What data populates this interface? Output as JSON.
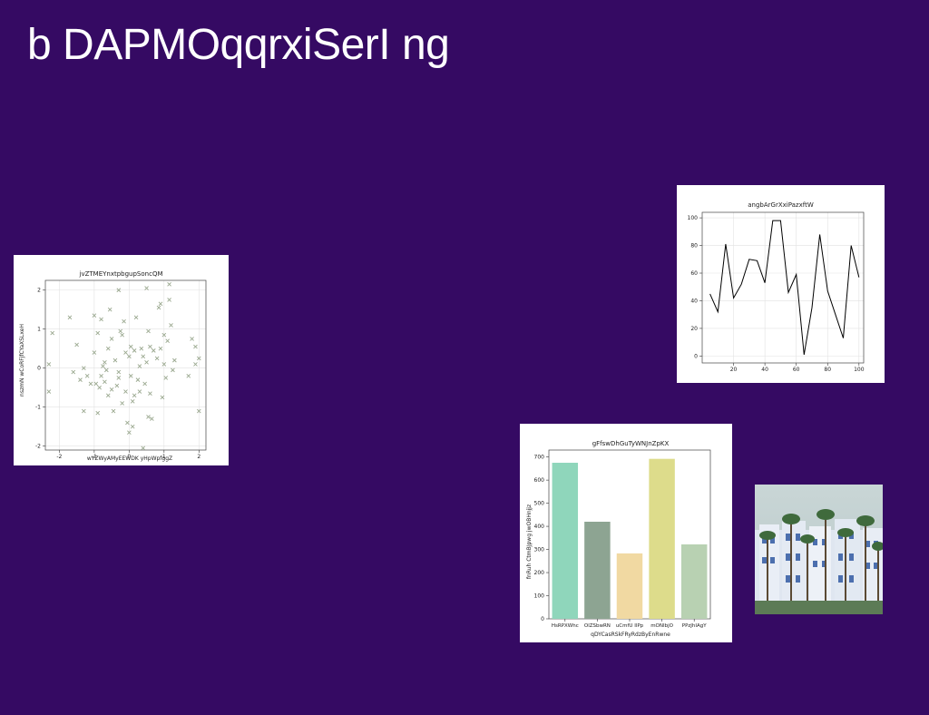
{
  "slide": {
    "title": "b DAPMOqqrxiSerI ng"
  },
  "charts": {
    "scatter": {
      "title": "jvZTMEYnxtpbgupSoncQM",
      "xlabel": "wYZWyAMyEEWDK yHpWpfggZ",
      "ylabel": "nszmN wCoRFjfCYaXSLxeH"
    },
    "line": {
      "title": "angbArGrXxiPazxftW"
    },
    "bar": {
      "title": "gFfswDhGuTyWNJnZpKX",
      "xlabel": "qDYCasRSkFRyRdzByEnRwne",
      "ylabel": "fnRuh CtmBJpwg jwOBHnjjz"
    }
  },
  "chart_data": [
    {
      "type": "scatter",
      "title": "jvZTMEYnxtpbgupSoncQM",
      "xlabel": "wYZWyAMyEEWDK yHpWpfggZ",
      "ylabel": "nszmN wCoRFjfCYaXSLxeH",
      "xlim": [
        -2.4,
        2.2
      ],
      "ylim": [
        -2.1,
        2.25
      ],
      "xticks": [
        -2,
        -1,
        0,
        1,
        2
      ],
      "yticks": [
        -2,
        -1,
        0,
        1,
        2
      ],
      "grid": true,
      "marker": "x",
      "color": "#9aa88f",
      "points": [
        [
          -2.3,
          0.1
        ],
        [
          -2.2,
          0.9
        ],
        [
          -2.3,
          -0.6
        ],
        [
          -1.7,
          1.3
        ],
        [
          -1.6,
          -0.1
        ],
        [
          -1.5,
          0.6
        ],
        [
          -1.4,
          -0.3
        ],
        [
          -1.3,
          -1.1
        ],
        [
          -1.3,
          0.0
        ],
        [
          -1.2,
          -0.2
        ],
        [
          -1.0,
          1.35
        ],
        [
          -1.0,
          0.4
        ],
        [
          -0.95,
          -0.4
        ],
        [
          -0.9,
          -1.15
        ],
        [
          -0.9,
          0.9
        ],
        [
          -0.85,
          -0.5
        ],
        [
          -0.8,
          -0.2
        ],
        [
          -0.8,
          1.25
        ],
        [
          -0.75,
          0.05
        ],
        [
          -0.7,
          -0.35
        ],
        [
          -0.65,
          -0.05
        ],
        [
          -0.6,
          0.5
        ],
        [
          -0.6,
          -0.7
        ],
        [
          -0.55,
          1.5
        ],
        [
          -0.5,
          0.75
        ],
        [
          -0.5,
          -0.55
        ],
        [
          -0.45,
          -1.1
        ],
        [
          -0.4,
          0.2
        ],
        [
          -0.35,
          -0.45
        ],
        [
          -0.3,
          2.0
        ],
        [
          -0.3,
          -0.1
        ],
        [
          -0.25,
          0.95
        ],
        [
          -0.2,
          0.85
        ],
        [
          -0.2,
          -0.9
        ],
        [
          -0.15,
          1.2
        ],
        [
          -0.1,
          0.4
        ],
        [
          -0.1,
          -0.6
        ],
        [
          -0.05,
          -1.4
        ],
        [
          0.0,
          0.3
        ],
        [
          0.0,
          -1.65
        ],
        [
          0.05,
          0.55
        ],
        [
          0.05,
          -0.2
        ],
        [
          0.1,
          -1.5
        ],
        [
          0.1,
          -0.85
        ],
        [
          0.15,
          0.45
        ],
        [
          0.2,
          1.3
        ],
        [
          0.25,
          -0.3
        ],
        [
          0.3,
          0.05
        ],
        [
          0.3,
          -0.6
        ],
        [
          0.35,
          0.5
        ],
        [
          0.4,
          -2.05
        ],
        [
          0.4,
          0.3
        ],
        [
          0.45,
          -0.4
        ],
        [
          0.5,
          2.05
        ],
        [
          0.5,
          0.15
        ],
        [
          0.55,
          -1.25
        ],
        [
          0.55,
          0.95
        ],
        [
          0.6,
          -0.65
        ],
        [
          0.65,
          -1.3
        ],
        [
          0.7,
          0.45
        ],
        [
          0.8,
          0.25
        ],
        [
          0.9,
          1.65
        ],
        [
          0.9,
          0.5
        ],
        [
          0.95,
          -0.75
        ],
        [
          1.0,
          0.85
        ],
        [
          1.0,
          0.1
        ],
        [
          1.05,
          -0.25
        ],
        [
          1.1,
          0.7
        ],
        [
          1.15,
          1.75
        ],
        [
          1.15,
          2.15
        ],
        [
          1.2,
          1.1
        ],
        [
          1.25,
          -0.05
        ],
        [
          1.3,
          0.2
        ],
        [
          1.7,
          -0.2
        ],
        [
          1.8,
          0.75
        ],
        [
          1.9,
          0.55
        ],
        [
          1.9,
          0.1
        ],
        [
          2.0,
          0.25
        ],
        [
          2.0,
          -1.1
        ],
        [
          0.85,
          1.55
        ],
        [
          -0.3,
          -0.25
        ],
        [
          0.15,
          -0.7
        ],
        [
          -0.7,
          0.15
        ],
        [
          0.6,
          0.55
        ],
        [
          -1.1,
          -0.4
        ]
      ]
    },
    {
      "type": "line",
      "title": "angbArGrXxiPazxftW",
      "xlim": [
        0,
        103
      ],
      "ylim": [
        -5,
        104
      ],
      "xticks": [
        20,
        40,
        60,
        80,
        100
      ],
      "yticks": [
        0,
        20,
        40,
        60,
        80,
        100
      ],
      "grid": true,
      "color": "#000000",
      "x": [
        5,
        10,
        15,
        20,
        25,
        30,
        35,
        40,
        45,
        50,
        55,
        60,
        65,
        70,
        75,
        80,
        85,
        90,
        95,
        100
      ],
      "y": [
        45,
        32,
        81,
        42,
        52,
        70,
        69,
        53,
        98,
        98,
        46,
        59,
        1,
        35,
        88,
        47,
        30,
        13,
        80,
        57
      ]
    },
    {
      "type": "bar",
      "title": "gFfswDhGuTyWNJnZpKX",
      "xlabel": "qDYCasRSkFRyRdzByEnRwne",
      "ylabel": "fnRuh CtmBJpwg jwOBHnjjz",
      "ylim": [
        0,
        730
      ],
      "yticks": [
        0,
        100,
        200,
        300,
        400,
        500,
        600,
        700
      ],
      "categories": [
        "HsRPXWhc",
        "OlZSbwRN",
        "uCmfU IlPp",
        "mONIbjO",
        "PPzJhIAgY"
      ],
      "values": [
        675,
        420,
        283,
        692,
        322
      ],
      "colors": [
        "#8fd6bb",
        "#8da492",
        "#f1d9a2",
        "#dddc8b",
        "#b8d1b2"
      ]
    }
  ]
}
